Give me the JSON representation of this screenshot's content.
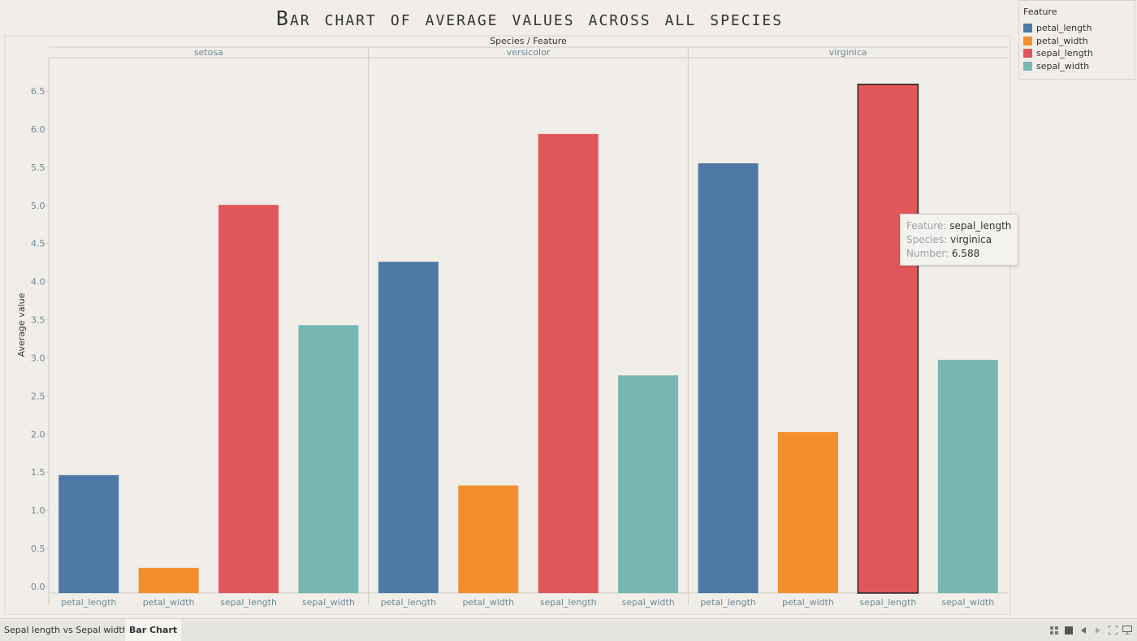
{
  "title": "Bar chart of average values across all species",
  "legend": {
    "title": "Feature",
    "items": [
      {
        "label": "petal_length",
        "color": "#4e79a7"
      },
      {
        "label": "petal_width",
        "color": "#f28e2b"
      },
      {
        "label": "sepal_length",
        "color": "#e15759"
      },
      {
        "label": "sepal_width",
        "color": "#76b7b2"
      }
    ]
  },
  "tooltip": {
    "feature_key": "Feature:",
    "feature_val": "sepal_length",
    "species_key": "Species:",
    "species_val": "virginica",
    "number_key": "Number:",
    "number_val": "6.588"
  },
  "tabs": {
    "tab1": "Sepal length vs Sepal width",
    "tab2": "Bar Chart"
  },
  "toolbar_icons": [
    "grid-icon",
    "square-icon",
    "prev-icon",
    "next-icon",
    "fullscreen-icon",
    "present-icon"
  ],
  "chart_data": {
    "type": "bar",
    "title": "Bar chart of average values across all species",
    "xlabel": "Species / Feature",
    "ylabel": "Average value",
    "ylim": [
      0,
      6.9
    ],
    "yticks": [
      0.0,
      0.5,
      1.0,
      1.5,
      2.0,
      2.5,
      3.0,
      3.5,
      4.0,
      4.5,
      5.0,
      5.5,
      6.0,
      6.5
    ],
    "groups": [
      "setosa",
      "versicolor",
      "virginica"
    ],
    "categories": [
      "petal_length",
      "petal_width",
      "sepal_length",
      "sepal_width"
    ],
    "colors": [
      "#4e79a7",
      "#f28e2b",
      "#e15759",
      "#76b7b2"
    ],
    "values": [
      [
        1.462,
        0.246,
        5.006,
        3.428
      ],
      [
        4.26,
        1.326,
        5.936,
        2.77
      ],
      [
        5.552,
        2.026,
        6.588,
        2.974
      ]
    ],
    "highlighted": {
      "group": "virginica",
      "category": "sepal_length"
    },
    "grid": false,
    "legend": "top-right"
  }
}
